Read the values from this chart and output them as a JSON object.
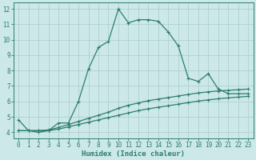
{
  "x": [
    0,
    1,
    2,
    3,
    4,
    5,
    6,
    7,
    8,
    9,
    10,
    11,
    12,
    13,
    14,
    15,
    16,
    17,
    18,
    19,
    20,
    21,
    22,
    23
  ],
  "y_main": [
    4.8,
    4.1,
    4.0,
    4.1,
    4.6,
    4.6,
    6.0,
    8.1,
    9.5,
    9.9,
    12.0,
    11.1,
    11.3,
    11.3,
    11.2,
    10.5,
    9.6,
    7.5,
    7.3,
    7.8,
    6.8,
    6.5,
    6.5,
    6.5
  ],
  "y_line2": [
    4.1,
    4.1,
    4.1,
    4.15,
    4.3,
    4.5,
    4.7,
    4.9,
    5.1,
    5.3,
    5.55,
    5.75,
    5.9,
    6.05,
    6.15,
    6.25,
    6.35,
    6.45,
    6.55,
    6.62,
    6.68,
    6.72,
    6.76,
    6.8
  ],
  "y_line3": [
    4.1,
    4.1,
    4.1,
    4.1,
    4.2,
    4.35,
    4.5,
    4.65,
    4.8,
    4.95,
    5.1,
    5.25,
    5.4,
    5.52,
    5.62,
    5.72,
    5.82,
    5.92,
    6.02,
    6.1,
    6.17,
    6.23,
    6.28,
    6.33
  ],
  "line_color": "#2e7d6e",
  "bg_color": "#cce8e8",
  "grid_color": "#aacccc",
  "xlabel": "Humidex (Indice chaleur)",
  "ylim": [
    3.6,
    12.4
  ],
  "xlim": [
    -0.5,
    23.5
  ],
  "yticks": [
    4,
    5,
    6,
    7,
    8,
    9,
    10,
    11,
    12
  ],
  "xticks": [
    0,
    1,
    2,
    3,
    4,
    5,
    6,
    7,
    8,
    9,
    10,
    11,
    12,
    13,
    14,
    15,
    16,
    17,
    18,
    19,
    20,
    21,
    22,
    23
  ],
  "marker": "+",
  "markersize": 3.5,
  "linewidth": 0.9,
  "tick_fontsize": 5.5,
  "xlabel_fontsize": 6.5
}
